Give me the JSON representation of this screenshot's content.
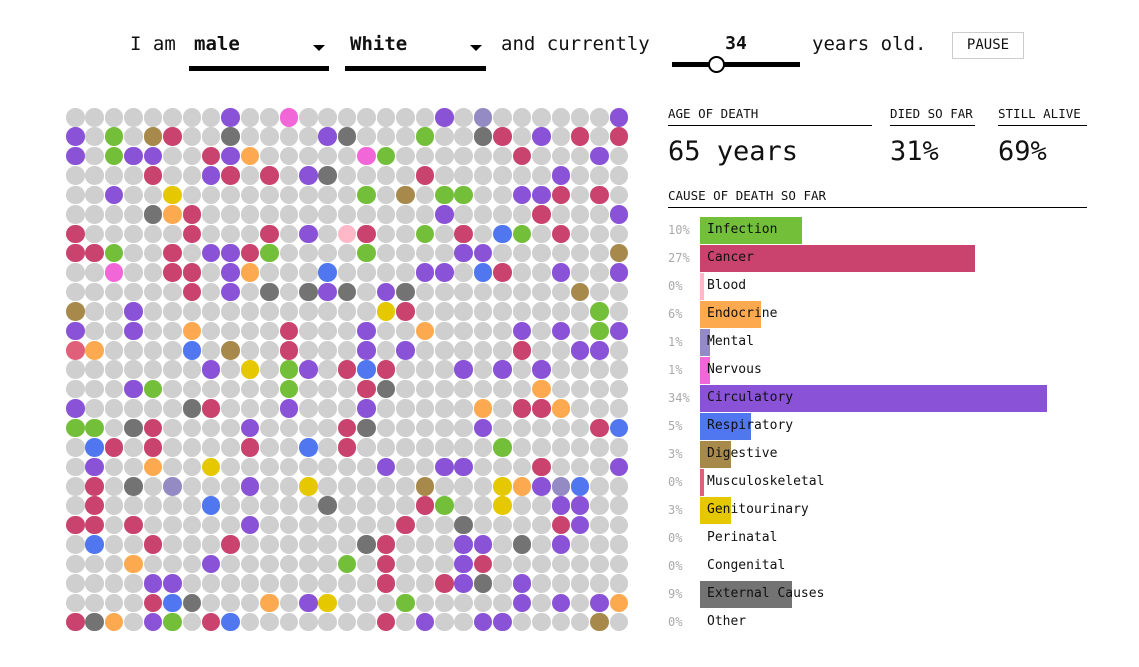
{
  "sentence": {
    "i_am": "I am",
    "sex": "male",
    "race": "White",
    "and_currently": "and currently",
    "age": "34",
    "years_old": "years old.",
    "pause_label": "PAUSE",
    "age_slider": {
      "value": 34,
      "min": 0,
      "max": 100
    }
  },
  "stats": {
    "age_of_death_label": "AGE OF DEATH",
    "age_of_death": "65 years",
    "died_label": "DIED SO FAR",
    "died": "31%",
    "alive_label": "STILL ALIVE",
    "alive": "69%"
  },
  "cause_header": "CAUSE OF DEATH SO FAR",
  "colors": {
    "alive": "#cfcfcf"
  },
  "causes": [
    {
      "code": "I",
      "label": "Infection",
      "pct": "10%",
      "value": 10,
      "color": "#73bf3a"
    },
    {
      "code": "C",
      "label": "Cancer",
      "pct": "27%",
      "value": 27,
      "color": "#c9436e"
    },
    {
      "code": "B",
      "label": "Blood",
      "pct": "0%",
      "value": 0,
      "color": "#ffb8c8"
    },
    {
      "code": "E",
      "label": "Endocrine",
      "pct": "6%",
      "value": 6,
      "color": "#fda94f"
    },
    {
      "code": "M",
      "label": "Mental",
      "pct": "1%",
      "value": 1,
      "color": "#948bc4"
    },
    {
      "code": "N",
      "label": "Nervous",
      "pct": "1%",
      "value": 1,
      "color": "#f267d8"
    },
    {
      "code": "P",
      "label": "Circulatory",
      "pct": "34%",
      "value": 34,
      "color": "#8a52d6"
    },
    {
      "code": "R",
      "label": "Respiratory",
      "pct": "5%",
      "value": 5,
      "color": "#5077ef"
    },
    {
      "code": "D",
      "label": "Digestive",
      "pct": "3%",
      "value": 3,
      "color": "#a8894c"
    },
    {
      "code": "K",
      "label": "Musculoskeletal",
      "pct": "0%",
      "value": 0,
      "color": "#e0607a"
    },
    {
      "code": "U",
      "label": "Genitourinary",
      "pct": "3%",
      "value": 3,
      "color": "#e6c800"
    },
    {
      "code": "Q",
      "label": "Perinatal",
      "pct": "0%",
      "value": 0,
      "color": "#999999"
    },
    {
      "code": "G",
      "label": "Congenital",
      "pct": "0%",
      "value": 0,
      "color": "#999999"
    },
    {
      "code": "X",
      "label": "External Causes",
      "pct": "9%",
      "value": 9,
      "color": "#737373"
    },
    {
      "code": "O",
      "label": "Other",
      "pct": "0%",
      "value": 0,
      "color": "#999999"
    }
  ],
  "grid_rows": [
    "ggggggggPggNgggggggPgMggggggP",
    "PgIgDCggXggggPXgggIggXCgPgCgC",
    "PgIPPggCPEgggggNIggggggCgggPg",
    "ggggCggPCgCgPXggggCggggggPggg",
    "ggPggUgggggggggIgDgIIggPPCgCg",
    "ggggXECggggggggggggPggggCgggP",
    "CgggggCgggCgPgBCggIgCgRIgCggg",
    "CCIggCgPPCIggggIggggPPggggggD",
    "ggNggCCgPEgggRggggPPgRCggPggP",
    "ggggggCgPgXgXPXgPXggggggggDgg",
    "DggPggggggggggggUCgggggggggIg",
    "PggPggEggggCgggPggEggggPgPgIP",
    "KEggggRgDggCgggPgPgggggCggPPg",
    "gggggggPgUgIPgCRCgggPgPgPgggg",
    "gggPIggggggIgggCXgggggggEgggg",
    "PgggggXCgggPgggPgggggEgCCEggg",
    "IIgXCggggPggggCXgggggPgggggCR",
    "gRCgCggggCggRgCgggggggIgggggg",
    "gPggEggUggggggggPggPPgggCgggP",
    "gCgXgMgggPggUgggggDgggUEPMRgg",
    "gCgggggRgggggXggggCIggUggPPgg",
    "CCgCgggggPgggggggCggXggggCPgg",
    "gRggCgggCggggggXCgggPPgXgPggg",
    "gggEgggPggggggIgCgggPCggggggg",
    "ggggPPggggggggggCggCPXgPggggg",
    "ggggCRXgggEgPUgggIgggggPgPgPE",
    "CXEgPIgCRgggggggCgPggPPggggDg"
  ]
}
